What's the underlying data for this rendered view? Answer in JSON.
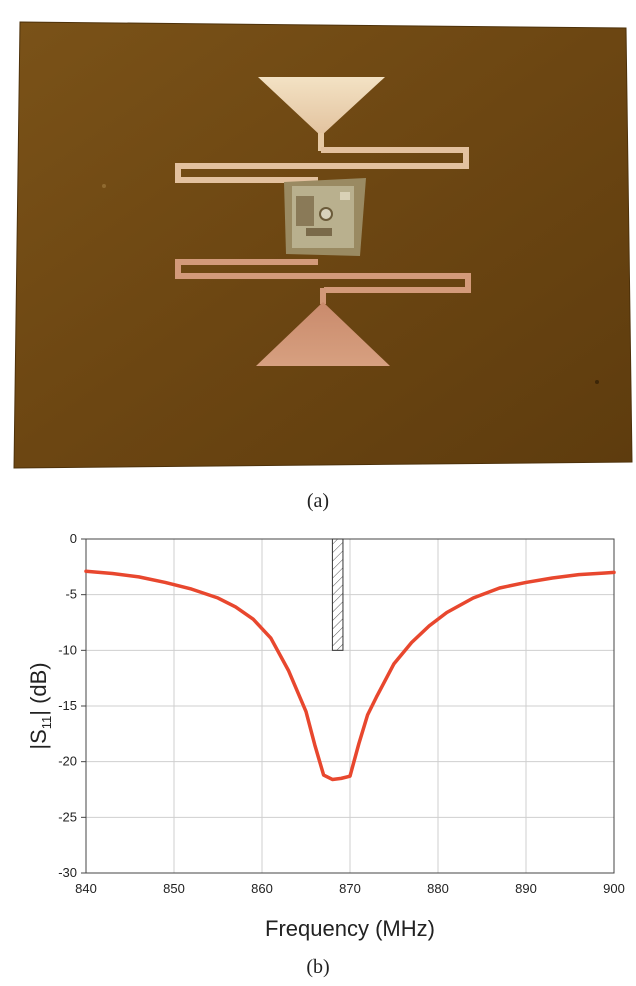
{
  "figure": {
    "caption_a": "(a)",
    "caption_b": "(b)"
  },
  "colors": {
    "board": "#6e4712",
    "curve": "#e8472e",
    "copper_light": "#ecd6b4",
    "copper_dark": "#c98a6c",
    "grid": "#cfcfcf"
  },
  "chart_data": {
    "type": "line",
    "title": "",
    "xlabel": "Frequency (MHz)",
    "ylabel_main": "|S",
    "ylabel_sub": "11",
    "ylabel_tail": "| (dB)",
    "xlim": [
      840,
      900
    ],
    "ylim": [
      -30,
      0
    ],
    "xticks": [
      840,
      850,
      860,
      870,
      880,
      890,
      900
    ],
    "yticks": [
      0,
      -5,
      -10,
      -15,
      -20,
      -25,
      -30
    ],
    "grid": true,
    "series": [
      {
        "x": [
          840,
          843,
          846,
          849,
          852,
          855,
          857,
          859,
          861,
          863,
          865,
          866,
          867,
          868,
          869,
          870,
          871,
          872,
          873,
          875,
          877,
          879,
          881,
          884,
          887,
          890,
          893,
          896,
          899,
          900
        ],
        "y": [
          -2.9,
          -3.1,
          -3.4,
          -3.9,
          -4.5,
          -5.3,
          -6.1,
          -7.2,
          -8.9,
          -11.8,
          -15.5,
          -18.5,
          -21.2,
          -21.6,
          -21.5,
          -21.3,
          -18.4,
          -15.8,
          -14.2,
          -11.2,
          -9.3,
          -7.8,
          -6.6,
          -5.3,
          -4.4,
          -3.9,
          -3.5,
          -3.2,
          -3.05,
          -3.0
        ]
      }
    ],
    "hatched_band": {
      "x_start": 868,
      "x_end": 869.2,
      "y_top": 0,
      "y_bottom": -10
    }
  }
}
